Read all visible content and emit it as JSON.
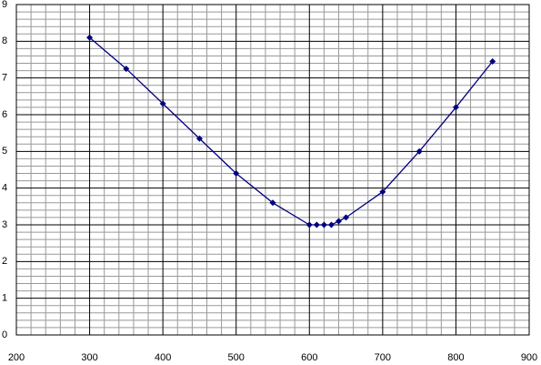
{
  "chart_data": {
    "type": "line",
    "x": [
      300,
      350,
      400,
      450,
      500,
      550,
      600,
      610,
      620,
      630,
      640,
      650,
      700,
      750,
      800,
      850
    ],
    "series": [
      {
        "color": "#000080",
        "values": [
          8.1,
          7.25,
          6.3,
          5.35,
          4.4,
          3.6,
          3.0,
          3.0,
          3.0,
          3.0,
          3.1,
          3.2,
          3.9,
          5.0,
          6.2,
          7.45
        ]
      }
    ],
    "xlim": [
      200,
      900
    ],
    "xticks": [
      200,
      300,
      400,
      500,
      600,
      700,
      800,
      900
    ],
    "ylim": [
      0,
      9
    ],
    "yticks": [
      0,
      1,
      2,
      3,
      4,
      5,
      6,
      7,
      8,
      9
    ],
    "grid": true
  }
}
